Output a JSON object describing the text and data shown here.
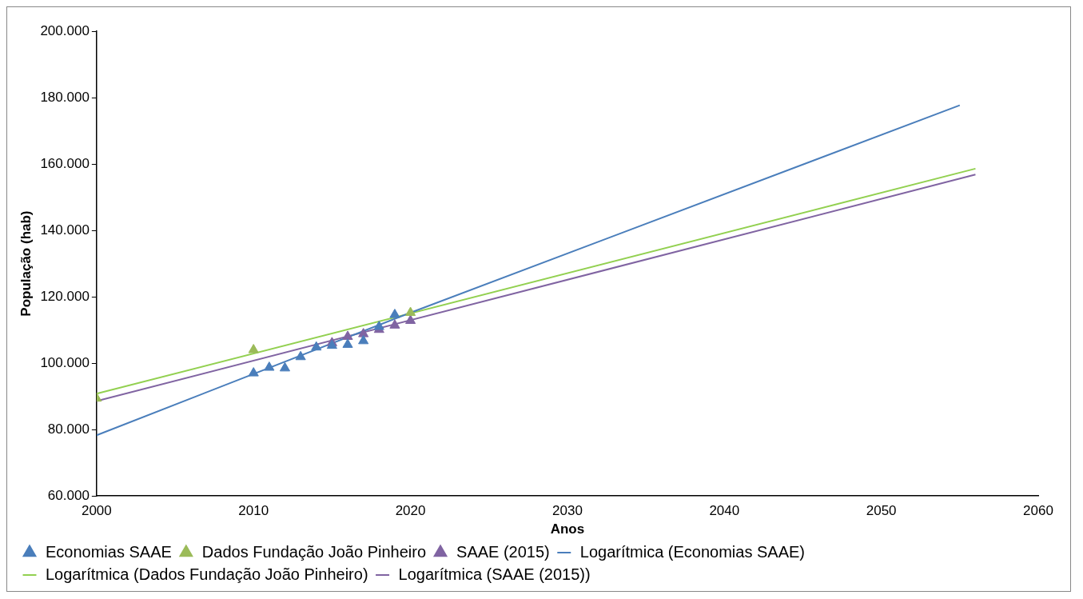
{
  "chart_data": {
    "type": "scatter",
    "xlabel": "Anos",
    "ylabel": "População (hab)",
    "xlim": [
      2000,
      2060
    ],
    "xticks": [
      2000,
      2010,
      2020,
      2030,
      2040,
      2050,
      2060
    ],
    "ylim": [
      60000,
      200000
    ],
    "yticks": [
      {
        "value": 60000,
        "label": "60.000"
      },
      {
        "value": 80000,
        "label": "80.000"
      },
      {
        "value": 100000,
        "label": "100.000"
      },
      {
        "value": 120000,
        "label": "120.000"
      },
      {
        "value": 140000,
        "label": "140.000"
      },
      {
        "value": 160000,
        "label": "160.000"
      },
      {
        "value": 180000,
        "label": "180.000"
      },
      {
        "value": 200000,
        "label": "200.000"
      }
    ],
    "grid": false,
    "legend": "bottom",
    "series": [
      {
        "name": "Economias SAAE",
        "marker": "triangle",
        "color": "#4a7ebb",
        "x": [
          2010,
          2011,
          2012,
          2013,
          2014,
          2015,
          2016,
          2017,
          2018,
          2019
        ],
        "values": [
          97000,
          98700,
          98500,
          101900,
          104800,
          105300,
          105600,
          106700,
          111000,
          114600
        ]
      },
      {
        "name": "Dados Fundação João Pinheiro",
        "marker": "triangle",
        "color": "#9bbb59",
        "x": [
          2000,
          2010,
          2020
        ],
        "values": [
          89400,
          104000,
          115200
        ]
      },
      {
        "name": "SAAE (2015)",
        "marker": "triangle",
        "color": "#8064a2",
        "x": [
          2015,
          2016,
          2017,
          2018,
          2019,
          2020
        ],
        "values": [
          106100,
          108000,
          108800,
          110100,
          111400,
          112800
        ]
      },
      {
        "name": "Logarítmica (Economias SAAE)",
        "type": "line",
        "marker": "none",
        "color": "#4a7ebb",
        "x": [
          2000,
          2020,
          2055
        ],
        "values": [
          78300,
          115200,
          177700
        ]
      },
      {
        "name": "Logarítmica (Dados Fundação João Pinheiro)",
        "type": "line",
        "marker": "none",
        "color": "#92d050",
        "x": [
          2000,
          2056
        ],
        "values": [
          90800,
          158600
        ]
      },
      {
        "name": "Logarítmica (SAAE (2015))",
        "type": "line",
        "marker": "none",
        "color": "#8064a2",
        "x": [
          2000,
          2056
        ],
        "values": [
          88600,
          156800
        ]
      }
    ]
  }
}
